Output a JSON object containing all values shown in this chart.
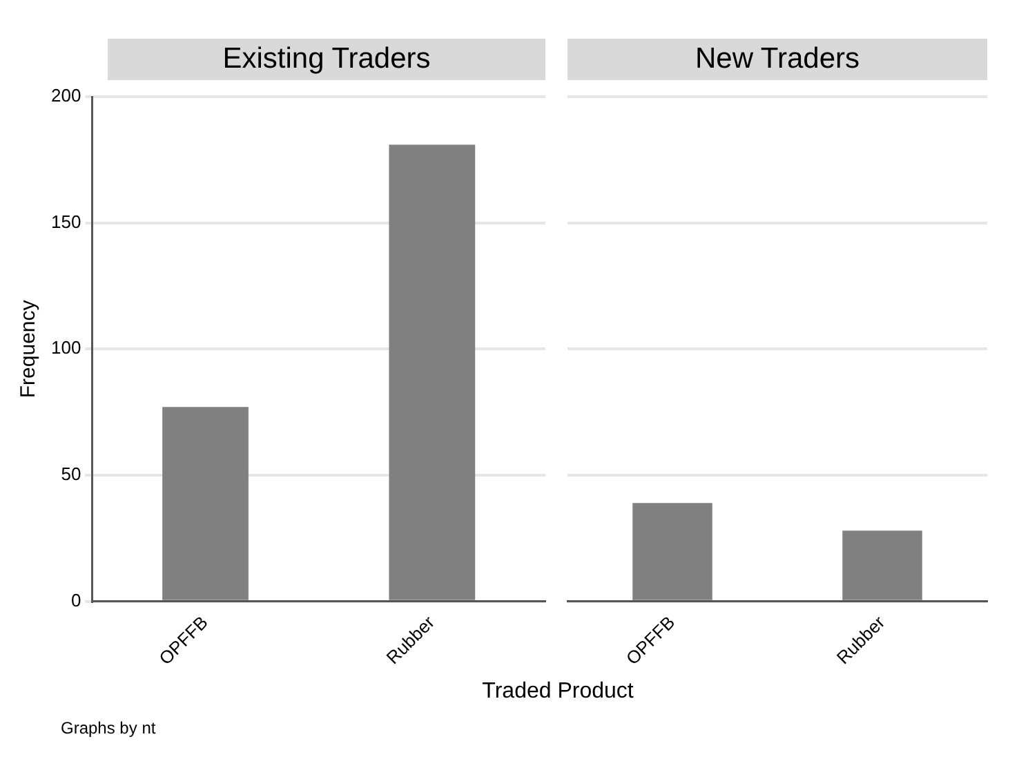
{
  "chart_data": [
    {
      "type": "bar",
      "title": "Existing Traders",
      "ylabel": "Frequency",
      "xlabel": "Traded Product",
      "categories": [
        "OPFFB",
        "Rubber"
      ],
      "values": [
        77,
        181
      ],
      "color": "#808080",
      "ylim": [
        0,
        200
      ],
      "yticks": [
        0,
        50,
        100,
        150,
        200
      ],
      "grid": "y",
      "annotations": [
        "Graphs by nt"
      ]
    },
    {
      "type": "bar",
      "title": "New Traders",
      "categories": [
        "OPFFB",
        "Rubber"
      ],
      "values": [
        39,
        28
      ],
      "color": "#808080",
      "ylim": [
        0,
        200
      ],
      "yticks": [
        0,
        50,
        100,
        150,
        200
      ],
      "grid": "y",
      "tick_labels": "x"
    }
  ]
}
